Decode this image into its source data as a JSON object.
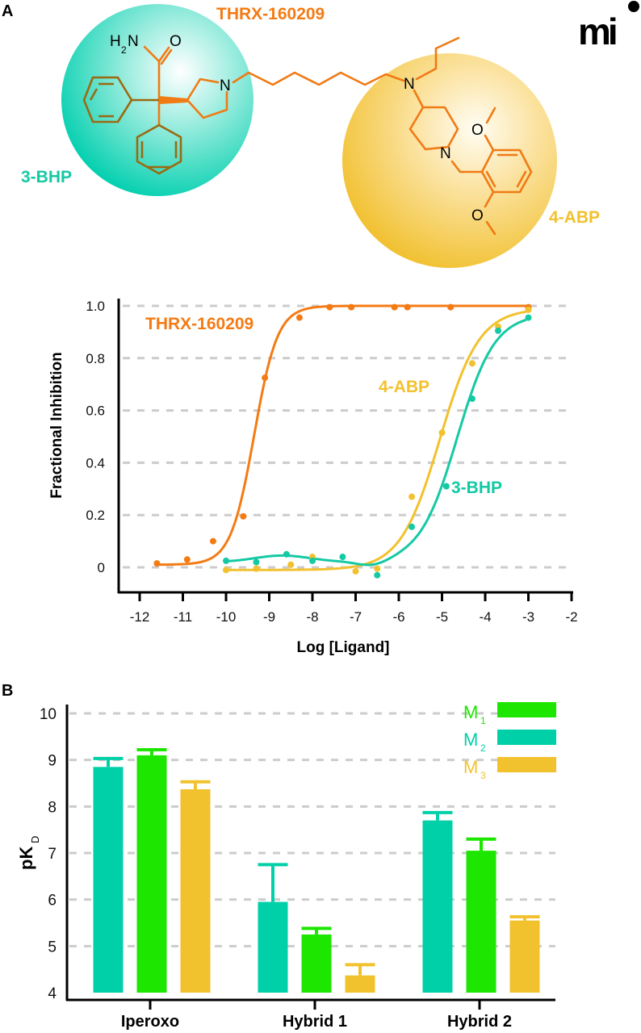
{
  "panel_a": {
    "letter": "A",
    "compound_name": "THRX-160209",
    "fragment_left": "3-BHP",
    "fragment_right": "4-ABP",
    "atoms": {
      "amide_n": "H",
      "amide_n_sub": "2",
      "amide_n2": "N",
      "oxygen": "O",
      "nitrogen": "N"
    },
    "logo_text": "mi"
  },
  "panel_b": {
    "letter": "B"
  },
  "colors": {
    "thrx": "#f47b14",
    "abp": "#f2c12e",
    "bhp": "#14c9a4",
    "m1": "#1de600",
    "m2": "#00d0a8",
    "m3": "#f2c22e",
    "grid": "#cccccc"
  },
  "chart_data": [
    {
      "type": "scatter",
      "title": "",
      "xlabel": "Log [Ligand]",
      "ylabel": "Fractional Inhibition",
      "xlim": [
        -12,
        -2
      ],
      "ylim": [
        0,
        1.0
      ],
      "x_ticks": [
        "-12",
        "-11",
        "-10",
        "-9",
        "-8",
        "-7",
        "-6",
        "-5",
        "-4",
        "-3",
        "-2"
      ],
      "y_ticks": [
        "0",
        "0.2",
        "0.4",
        "0.6",
        "0.8",
        "1.0"
      ],
      "grid": "horizontal dashed",
      "series": [
        {
          "name": "THRX-160209",
          "color_key": "thrx",
          "x": [
            -11.6,
            -10.9,
            -10.3,
            -9.6,
            -9.1,
            -8.3,
            -7.6,
            -7.1,
            -6.1,
            -5.8,
            -4.8,
            -3.0
          ],
          "y": [
            0.015,
            0.03,
            0.1,
            0.195,
            0.725,
            0.955,
            0.995,
            0.995,
            0.995,
            0.995,
            0.995,
            0.995
          ],
          "fit": {
            "bottom": 0.01,
            "top": 1.0,
            "logIC50": -9.35,
            "hill": 1.6
          }
        },
        {
          "name": "4-ABP",
          "color_key": "abp",
          "x": [
            -10.0,
            -9.3,
            -8.5,
            -8.0,
            -7.0,
            -6.5,
            -5.7,
            -5.0,
            -4.3,
            -3.7,
            -3.0
          ],
          "y": [
            -0.01,
            -0.005,
            0.01,
            0.04,
            -0.015,
            -0.005,
            0.27,
            0.515,
            0.78,
            0.92,
            0.985
          ],
          "fit": {
            "bottom": -0.01,
            "top": 0.99,
            "logIC50": -5.05,
            "hill": 0.95
          }
        },
        {
          "name": "3-BHP",
          "color_key": "bhp",
          "x": [
            -10.0,
            -9.3,
            -8.6,
            -8.0,
            -7.3,
            -6.5,
            -5.7,
            -4.9,
            -4.3,
            -3.7,
            -3.0
          ],
          "y": [
            0.025,
            0.02,
            0.05,
            0.025,
            0.04,
            -0.03,
            0.155,
            0.31,
            0.645,
            0.905,
            0.955
          ],
          "fit": {
            "bottom": 0.02,
            "top": 0.97,
            "logIC50": -4.65,
            "hill": 1.0
          }
        }
      ],
      "annotations": [
        "THRX-160209",
        "4-ABP",
        "3-BHP"
      ]
    },
    {
      "type": "bar",
      "title": "",
      "xlabel": "",
      "ylabel": "pKD",
      "ylabel_main": "pK",
      "ylabel_sub": "D",
      "ylim": [
        4,
        10
      ],
      "y_ticks": [
        "4",
        "5",
        "6",
        "7",
        "8",
        "9",
        "10"
      ],
      "grid": "horizontal dashed",
      "legend_position": "top-right",
      "categories": [
        "Iperoxo",
        "Hybrid 1",
        "Hybrid 2"
      ],
      "bar_order": [
        "M2",
        "M1",
        "M3"
      ],
      "series": [
        {
          "name": "M1",
          "name_main": "M",
          "name_sub": "1",
          "color_key": "m1",
          "values": [
            9.1,
            5.25,
            7.05
          ],
          "errors": [
            0.12,
            0.13,
            0.25
          ]
        },
        {
          "name": "M2",
          "name_main": "M",
          "name_sub": "2",
          "color_key": "m2",
          "values": [
            8.85,
            5.95,
            7.7
          ],
          "errors": [
            0.18,
            0.8,
            0.17
          ]
        },
        {
          "name": "M3",
          "name_main": "M",
          "name_sub": "3",
          "color_key": "m3",
          "values": [
            8.37,
            4.37,
            5.55
          ],
          "errors": [
            0.16,
            0.23,
            0.08
          ]
        }
      ]
    }
  ]
}
